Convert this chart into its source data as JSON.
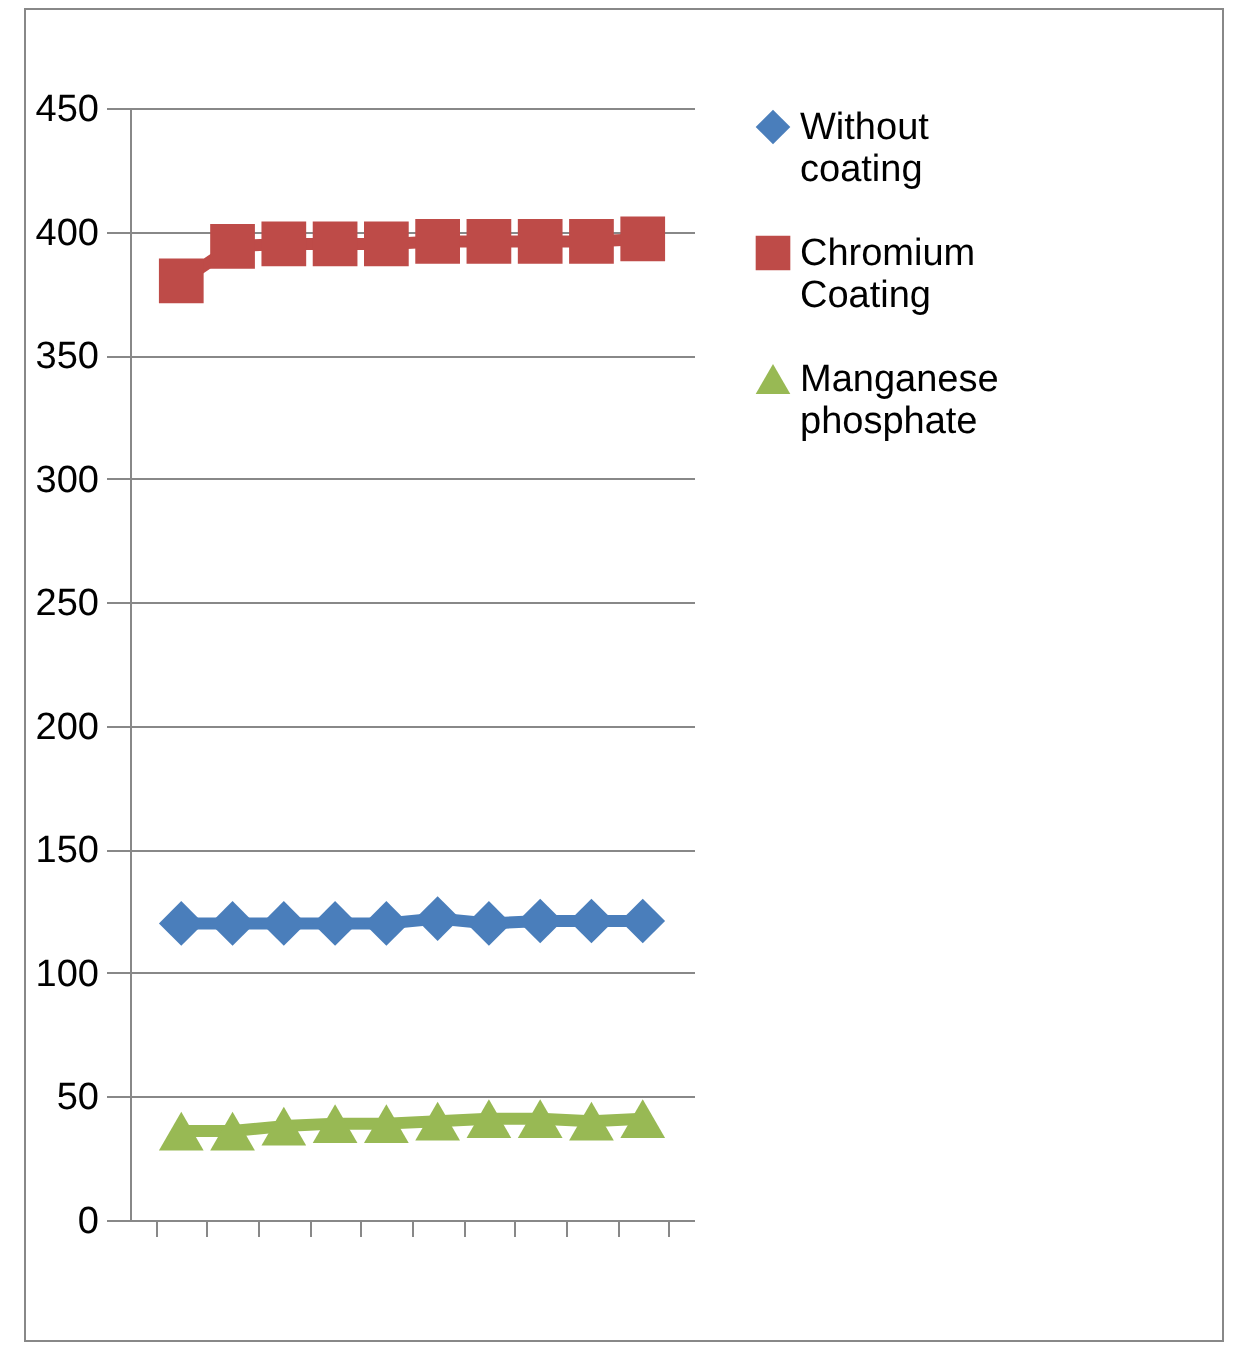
{
  "chart_data": {
    "type": "line",
    "categories": [
      null,
      null,
      null,
      null,
      null,
      null,
      null,
      null,
      null,
      null
    ],
    "series": [
      {
        "name": "Without coating",
        "color": "#4a7ebb",
        "marker": "diamond",
        "values": [
          120,
          120,
          120,
          120,
          120,
          122,
          120,
          121,
          121,
          121
        ]
      },
      {
        "name": "Chromium Coating",
        "color": "#be4b48",
        "marker": "square",
        "values": [
          380,
          394,
          395,
          395,
          395,
          396,
          396,
          396,
          396,
          397
        ]
      },
      {
        "name": "Manganese phosphate",
        "color": "#98b954",
        "marker": "triangle",
        "values": [
          36,
          36,
          38,
          39,
          39,
          40,
          41,
          41,
          40,
          41
        ]
      }
    ],
    "ylim": [
      0,
      450
    ],
    "yticks": [
      0,
      50,
      100,
      150,
      200,
      250,
      300,
      350,
      400,
      450
    ],
    "grid": "y",
    "legend": "right",
    "tick_labels": "y",
    "line_style": "solid"
  }
}
